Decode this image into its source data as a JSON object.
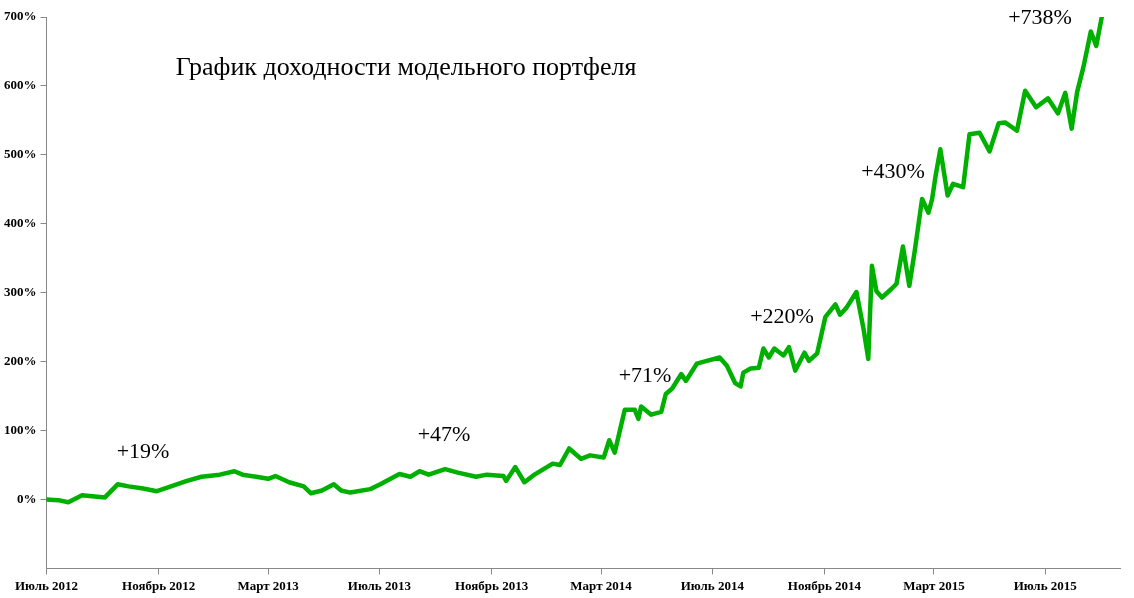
{
  "chart_data": {
    "type": "line",
    "title": "График доходности модельного портфеля",
    "x": [
      "2012-07-01",
      "2012-07-14",
      "2012-07-25",
      "2012-08-09",
      "2012-09-03",
      "2012-09-17",
      "2012-09-29",
      "2012-10-15",
      "2012-10-30",
      "2012-11-08",
      "2012-12-02",
      "2012-12-18",
      "2013-01-07",
      "2013-01-23",
      "2013-02-01",
      "2013-02-16",
      "2013-03-01",
      "2013-03-09",
      "2013-03-24",
      "2013-04-09",
      "2013-04-17",
      "2013-04-29",
      "2013-05-12",
      "2013-05-20",
      "2013-05-30",
      "2013-06-21",
      "2013-07-02",
      "2013-07-23",
      "2013-08-04",
      "2013-08-14",
      "2013-08-24",
      "2013-09-11",
      "2013-09-25",
      "2013-10-15",
      "2013-10-27",
      "2013-11-14",
      "2013-11-17",
      "2013-11-27",
      "2013-12-07",
      "2013-12-18",
      "2014-01-07",
      "2014-01-15",
      "2014-01-25",
      "2014-02-07",
      "2014-02-17",
      "2014-03-04",
      "2014-03-10",
      "2014-03-16",
      "2014-03-27",
      "2014-04-07",
      "2014-04-11",
      "2014-04-14",
      "2014-04-25",
      "2014-05-06",
      "2014-05-11",
      "2014-05-18",
      "2014-05-28",
      "2014-06-02",
      "2014-06-14",
      "2014-06-25",
      "2014-07-09",
      "2014-07-17",
      "2014-07-26",
      "2014-08-01",
      "2014-08-04",
      "2014-08-12",
      "2014-08-21",
      "2014-08-26",
      "2014-09-01",
      "2014-09-07",
      "2014-09-17",
      "2014-09-23",
      "2014-09-30",
      "2014-10-10",
      "2014-10-15",
      "2014-10-24",
      "2014-11-02",
      "2014-11-13",
      "2014-11-18",
      "2014-11-25",
      "2014-12-06",
      "2014-12-14",
      "2014-12-19",
      "2014-12-23",
      "2014-12-28",
      "2015-01-03",
      "2015-01-13",
      "2015-01-19",
      "2015-01-26",
      "2015-02-02",
      "2015-02-08",
      "2015-02-16",
      "2015-02-23",
      "2015-02-27",
      "2015-03-03",
      "2015-03-08",
      "2015-03-16",
      "2015-03-22",
      "2015-04-02",
      "2015-04-09",
      "2015-04-20",
      "2015-05-01",
      "2015-05-11",
      "2015-05-18",
      "2015-05-31",
      "2015-06-09",
      "2015-06-21",
      "2015-07-04",
      "2015-07-15",
      "2015-07-23",
      "2015-07-30",
      "2015-08-05",
      "2015-08-12",
      "2015-08-20",
      "2015-08-26",
      "2015-09-01"
    ],
    "series": [
      {
        "color": "#00b000",
        "values": [
          0,
          -1,
          -4,
          6,
          3,
          22,
          19,
          16,
          12,
          16,
          27,
          33,
          36,
          41,
          36,
          33,
          30,
          34,
          25,
          19,
          9,
          13,
          22,
          13,
          10,
          15,
          22,
          37,
          33,
          41,
          36,
          44,
          39,
          33,
          36,
          34,
          27,
          47,
          25,
          36,
          52,
          50,
          74,
          59,
          64,
          61,
          86,
          68,
          130,
          130,
          117,
          135,
          123,
          127,
          153,
          161,
          182,
          172,
          197,
          201,
          206,
          194,
          169,
          164,
          184,
          190,
          191,
          219,
          206,
          219,
          209,
          221,
          187,
          213,
          201,
          212,
          265,
          283,
          268,
          278,
          301,
          246,
          204,
          339,
          302,
          293,
          305,
          313,
          367,
          310,
          361,
          436,
          416,
          436,
          471,
          508,
          441,
          458,
          453,
          530,
          532,
          505,
          546,
          547,
          535,
          593,
          569,
          582,
          560,
          590,
          538,
          591,
          628,
          679,
          658,
          700
        ]
      }
    ],
    "xlim": [
      "2012-07-01",
      "2015-09-21"
    ],
    "xticks": [
      {
        "value": "2012-07-01",
        "label": "Июль 2012"
      },
      {
        "value": "2012-11-01",
        "label": "Ноябрь 2012"
      },
      {
        "value": "2013-03-01",
        "label": "Март 2013"
      },
      {
        "value": "2013-07-01",
        "label": "Июль 2013"
      },
      {
        "value": "2013-11-01",
        "label": "Ноябрь 2013"
      },
      {
        "value": "2014-03-01",
        "label": "Март 2014"
      },
      {
        "value": "2014-07-01",
        "label": "Июль 2014"
      },
      {
        "value": "2014-11-01",
        "label": "Ноябрь 2014"
      },
      {
        "value": "2015-03-01",
        "label": "Март 2015"
      },
      {
        "value": "2015-07-01",
        "label": "Июль 2015"
      }
    ],
    "ylim": [
      -100,
      700
    ],
    "yticks": [
      {
        "value": 0,
        "label": "0%"
      },
      {
        "value": 100,
        "label": "100%"
      },
      {
        "value": 200,
        "label": "200%"
      },
      {
        "value": 300,
        "label": "300%"
      },
      {
        "value": 400,
        "label": "400%"
      },
      {
        "value": 500,
        "label": "500%"
      },
      {
        "value": 600,
        "label": "600%"
      },
      {
        "value": 700,
        "label": "700%"
      }
    ],
    "annotations": [
      "+19%",
      "+47%",
      "+71%",
      "+220%",
      "+430%",
      "+738%"
    ],
    "grid": false,
    "legend": false,
    "marker": "none",
    "line_style": "solid"
  }
}
